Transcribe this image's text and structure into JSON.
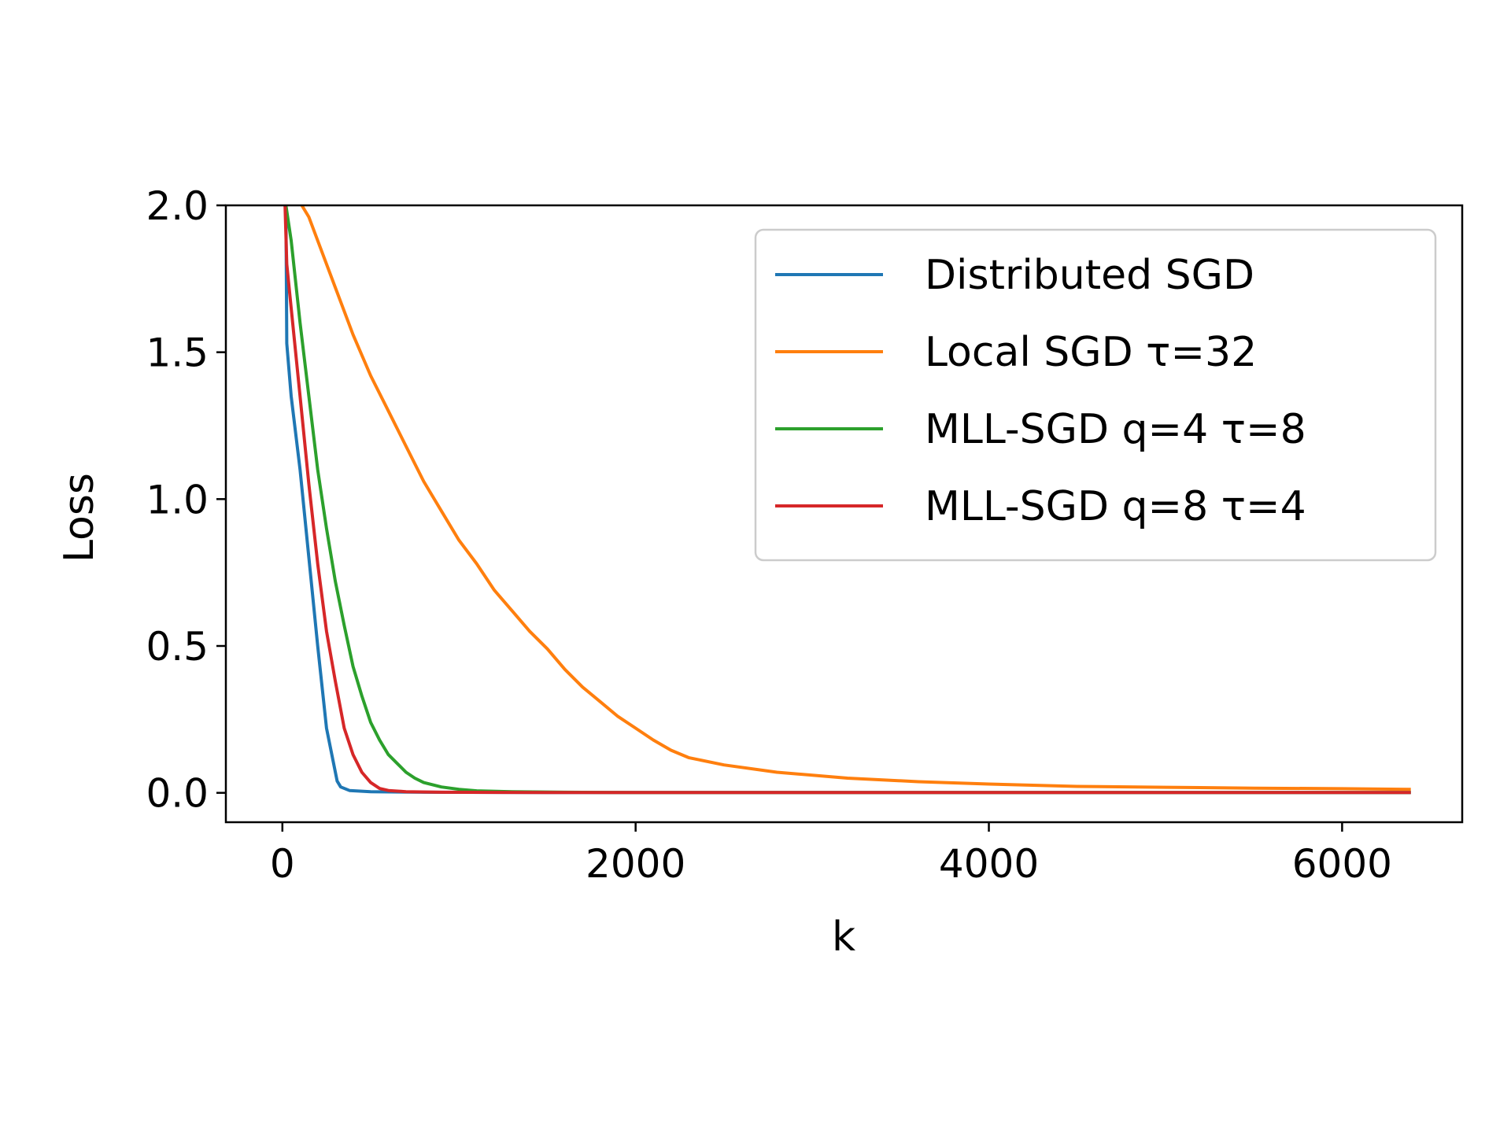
{
  "chart_data": {
    "type": "line",
    "title": "",
    "xlabel": "k",
    "ylabel": "Loss",
    "xlim": [
      -320,
      6680
    ],
    "ylim": [
      -0.1,
      2.0
    ],
    "xticks": [
      0,
      2000,
      4000,
      6000
    ],
    "yticks": [
      0.0,
      0.5,
      1.0,
      1.5,
      2.0
    ],
    "xtick_labels": [
      "0",
      "2000",
      "4000",
      "6000"
    ],
    "ytick_labels": [
      "0.0",
      "0.5",
      "1.0",
      "1.5",
      "2.0"
    ],
    "grid": false,
    "legend_position": "top-right",
    "series": [
      {
        "name": "Distributed SGD",
        "color": "#1f77b4",
        "points": [
          [
            20,
            2.0
          ],
          [
            25,
            1.53
          ],
          [
            50,
            1.35
          ],
          [
            100,
            1.1
          ],
          [
            150,
            0.8
          ],
          [
            200,
            0.5
          ],
          [
            250,
            0.22
          ],
          [
            290,
            0.1
          ],
          [
            310,
            0.04
          ],
          [
            330,
            0.02
          ],
          [
            380,
            0.008
          ],
          [
            500,
            0.004
          ],
          [
            800,
            0.002
          ],
          [
            1500,
            0.001
          ],
          [
            6380,
            0.001
          ]
        ]
      },
      {
        "name": "Local SGD τ=32",
        "color": "#ff7f0e",
        "points": [
          [
            110,
            2.0
          ],
          [
            150,
            1.96
          ],
          [
            200,
            1.88
          ],
          [
            300,
            1.72
          ],
          [
            400,
            1.56
          ],
          [
            500,
            1.42
          ],
          [
            600,
            1.3
          ],
          [
            700,
            1.18
          ],
          [
            800,
            1.06
          ],
          [
            900,
            0.96
          ],
          [
            1000,
            0.86
          ],
          [
            1100,
            0.78
          ],
          [
            1200,
            0.69
          ],
          [
            1300,
            0.62
          ],
          [
            1400,
            0.55
          ],
          [
            1500,
            0.49
          ],
          [
            1600,
            0.42
          ],
          [
            1700,
            0.36
          ],
          [
            1800,
            0.31
          ],
          [
            1900,
            0.26
          ],
          [
            2000,
            0.22
          ],
          [
            2100,
            0.18
          ],
          [
            2200,
            0.145
          ],
          [
            2300,
            0.12
          ],
          [
            2500,
            0.095
          ],
          [
            2800,
            0.07
          ],
          [
            3200,
            0.05
          ],
          [
            3600,
            0.038
          ],
          [
            4000,
            0.03
          ],
          [
            4500,
            0.022
          ],
          [
            5000,
            0.019
          ],
          [
            5500,
            0.016
          ],
          [
            6000,
            0.014
          ],
          [
            6380,
            0.012
          ]
        ]
      },
      {
        "name": "MLL-SGD q=4 τ=8",
        "color": "#2ca02c",
        "points": [
          [
            20,
            2.0
          ],
          [
            50,
            1.88
          ],
          [
            100,
            1.6
          ],
          [
            150,
            1.35
          ],
          [
            200,
            1.1
          ],
          [
            250,
            0.9
          ],
          [
            300,
            0.72
          ],
          [
            350,
            0.57
          ],
          [
            400,
            0.43
          ],
          [
            450,
            0.33
          ],
          [
            500,
            0.24
          ],
          [
            550,
            0.18
          ],
          [
            600,
            0.13
          ],
          [
            650,
            0.1
          ],
          [
            700,
            0.07
          ],
          [
            750,
            0.05
          ],
          [
            800,
            0.035
          ],
          [
            900,
            0.02
          ],
          [
            1000,
            0.012
          ],
          [
            1100,
            0.007
          ],
          [
            1300,
            0.004
          ],
          [
            1600,
            0.002
          ],
          [
            2000,
            0.001
          ],
          [
            6380,
            0.001
          ]
        ]
      },
      {
        "name": "MLL-SGD q=8 τ=4",
        "color": "#d62728",
        "points": [
          [
            15,
            2.0
          ],
          [
            25,
            1.8
          ],
          [
            50,
            1.65
          ],
          [
            100,
            1.35
          ],
          [
            150,
            1.05
          ],
          [
            200,
            0.78
          ],
          [
            250,
            0.55
          ],
          [
            300,
            0.38
          ],
          [
            350,
            0.22
          ],
          [
            400,
            0.13
          ],
          [
            450,
            0.07
          ],
          [
            500,
            0.035
          ],
          [
            550,
            0.015
          ],
          [
            600,
            0.008
          ],
          [
            700,
            0.004
          ],
          [
            900,
            0.002
          ],
          [
            1500,
            0.001
          ],
          [
            6380,
            0.001
          ]
        ]
      }
    ]
  }
}
